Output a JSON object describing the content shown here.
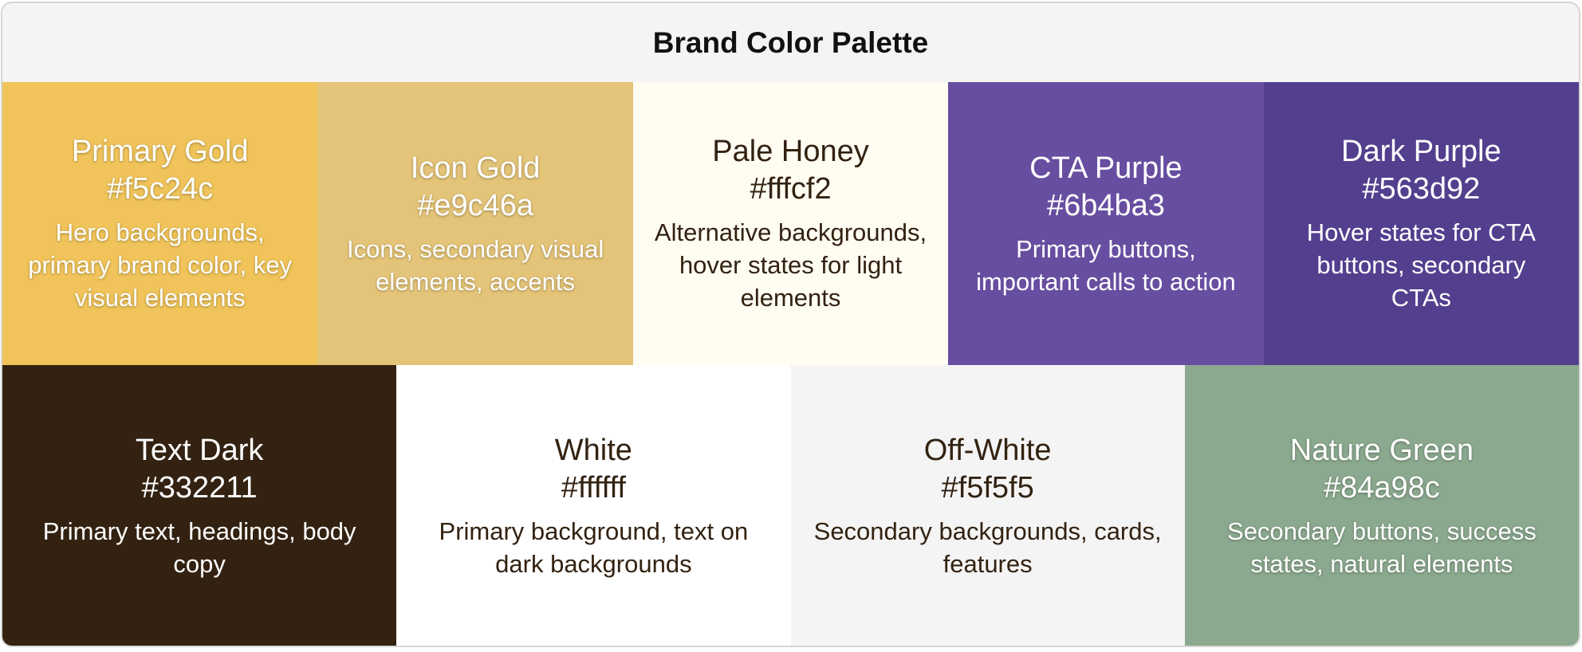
{
  "title": "Brand Color Palette",
  "swatches": [
    {
      "name": "Primary Gold",
      "hex": "#f5c24c",
      "description": "Hero backgrounds, primary brand color, key visual elements"
    },
    {
      "name": "Icon Gold",
      "hex": "#e9c46a",
      "description": "Icons, secondary visual elements, accents"
    },
    {
      "name": "Pale Honey",
      "hex": "#fffcf2",
      "description": "Alternative backgrounds, hover states for light elements"
    },
    {
      "name": "CTA Purple",
      "hex": "#6b4ba3",
      "description": "Primary buttons, important calls to action"
    },
    {
      "name": "Dark Purple",
      "hex": "#563d92",
      "description": "Hover states for CTA buttons, secondary CTAs"
    },
    {
      "name": "Text Dark",
      "hex": "#332211",
      "description": "Primary text, headings, body copy"
    },
    {
      "name": "White",
      "hex": "#ffffff",
      "description": "Primary background, text on dark backgrounds"
    },
    {
      "name": "Off-White",
      "hex": "#f5f5f5",
      "description": "Secondary backgrounds, cards, features"
    },
    {
      "name": "Nature Green",
      "hex": "#84a98c",
      "description": "Secondary buttons, success states, natural elements"
    }
  ]
}
